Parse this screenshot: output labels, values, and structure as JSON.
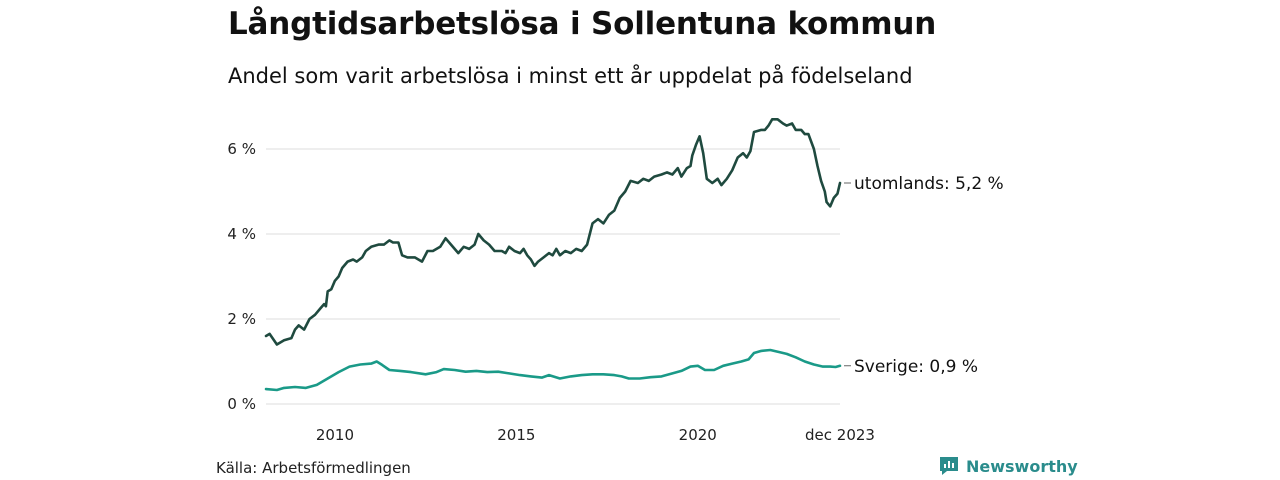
{
  "header": {
    "title": "Långtidsarbetslösa i Sollentuna kommun",
    "subtitle": "Andel som varit arbetslösa i minst ett år uppdelat på födelseland"
  },
  "footer": {
    "source": "Källa: Arbetsförmedlingen",
    "brand": "Newsworthy"
  },
  "colors": {
    "utomlands": "#1f4a3f",
    "sverige": "#1a9a88",
    "grid": "#dddddd",
    "brand": "#2a8c8c"
  },
  "chart_data": {
    "type": "line",
    "title": "Långtidsarbetslösa i Sollentuna kommun",
    "subtitle": "Andel som varit arbetslösa i minst ett år uppdelat på födelseland",
    "xlabel": "",
    "ylabel": "",
    "xlim": [
      2008.1,
      2023.92
    ],
    "ylim": [
      0,
      6.8
    ],
    "x_ticks": [
      {
        "value": 2010,
        "label": "2010"
      },
      {
        "value": 2015,
        "label": "2015"
      },
      {
        "value": 2020,
        "label": "2020"
      },
      {
        "value": 2023.92,
        "label": "dec 2023"
      }
    ],
    "y_ticks": [
      {
        "value": 0,
        "label": "0 %"
      },
      {
        "value": 2,
        "label": "2 %"
      },
      {
        "value": 4,
        "label": "4 %"
      },
      {
        "value": 6,
        "label": "6 %"
      }
    ],
    "grid": true,
    "series": [
      {
        "name": "utomlands",
        "end_label": "utomlands: 5,2 %",
        "color": "#1f4a3f",
        "points": [
          [
            2008.1,
            1.6
          ],
          [
            2008.2,
            1.65
          ],
          [
            2008.4,
            1.4
          ],
          [
            2008.6,
            1.5
          ],
          [
            2008.8,
            1.55
          ],
          [
            2008.9,
            1.75
          ],
          [
            2009.0,
            1.85
          ],
          [
            2009.15,
            1.75
          ],
          [
            2009.3,
            2.0
          ],
          [
            2009.45,
            2.1
          ],
          [
            2009.6,
            2.25
          ],
          [
            2009.7,
            2.35
          ],
          [
            2009.75,
            2.3
          ],
          [
            2009.8,
            2.65
          ],
          [
            2009.9,
            2.7
          ],
          [
            2010.0,
            2.9
          ],
          [
            2010.1,
            3.0
          ],
          [
            2010.2,
            3.2
          ],
          [
            2010.35,
            3.35
          ],
          [
            2010.5,
            3.4
          ],
          [
            2010.6,
            3.35
          ],
          [
            2010.75,
            3.45
          ],
          [
            2010.85,
            3.6
          ],
          [
            2011.0,
            3.7
          ],
          [
            2011.2,
            3.75
          ],
          [
            2011.35,
            3.75
          ],
          [
            2011.5,
            3.85
          ],
          [
            2011.6,
            3.8
          ],
          [
            2011.75,
            3.8
          ],
          [
            2011.85,
            3.5
          ],
          [
            2012.0,
            3.45
          ],
          [
            2012.2,
            3.45
          ],
          [
            2012.4,
            3.35
          ],
          [
            2012.55,
            3.6
          ],
          [
            2012.7,
            3.6
          ],
          [
            2012.9,
            3.7
          ],
          [
            2013.05,
            3.9
          ],
          [
            2013.2,
            3.75
          ],
          [
            2013.4,
            3.55
          ],
          [
            2013.55,
            3.7
          ],
          [
            2013.7,
            3.65
          ],
          [
            2013.85,
            3.75
          ],
          [
            2013.95,
            4.0
          ],
          [
            2014.1,
            3.85
          ],
          [
            2014.25,
            3.75
          ],
          [
            2014.4,
            3.6
          ],
          [
            2014.6,
            3.6
          ],
          [
            2014.7,
            3.55
          ],
          [
            2014.8,
            3.7
          ],
          [
            2014.95,
            3.6
          ],
          [
            2015.1,
            3.55
          ],
          [
            2015.2,
            3.65
          ],
          [
            2015.3,
            3.5
          ],
          [
            2015.4,
            3.4
          ],
          [
            2015.5,
            3.25
          ],
          [
            2015.6,
            3.35
          ],
          [
            2015.75,
            3.45
          ],
          [
            2015.9,
            3.55
          ],
          [
            2016.0,
            3.5
          ],
          [
            2016.1,
            3.65
          ],
          [
            2016.2,
            3.5
          ],
          [
            2016.35,
            3.6
          ],
          [
            2016.5,
            3.55
          ],
          [
            2016.65,
            3.65
          ],
          [
            2016.8,
            3.6
          ],
          [
            2016.95,
            3.75
          ],
          [
            2017.1,
            4.25
          ],
          [
            2017.25,
            4.35
          ],
          [
            2017.4,
            4.25
          ],
          [
            2017.55,
            4.45
          ],
          [
            2017.7,
            4.55
          ],
          [
            2017.85,
            4.85
          ],
          [
            2018.0,
            5.0
          ],
          [
            2018.15,
            5.25
          ],
          [
            2018.35,
            5.2
          ],
          [
            2018.5,
            5.3
          ],
          [
            2018.65,
            5.25
          ],
          [
            2018.8,
            5.35
          ],
          [
            2019.0,
            5.4
          ],
          [
            2019.15,
            5.45
          ],
          [
            2019.3,
            5.4
          ],
          [
            2019.45,
            5.55
          ],
          [
            2019.55,
            5.35
          ],
          [
            2019.7,
            5.55
          ],
          [
            2019.8,
            5.6
          ],
          [
            2019.85,
            5.85
          ],
          [
            2019.95,
            6.1
          ],
          [
            2020.05,
            6.3
          ],
          [
            2020.15,
            5.9
          ],
          [
            2020.25,
            5.3
          ],
          [
            2020.4,
            5.2
          ],
          [
            2020.55,
            5.3
          ],
          [
            2020.65,
            5.15
          ],
          [
            2020.8,
            5.3
          ],
          [
            2020.95,
            5.5
          ],
          [
            2021.1,
            5.8
          ],
          [
            2021.25,
            5.9
          ],
          [
            2021.35,
            5.8
          ],
          [
            2021.45,
            5.95
          ],
          [
            2021.55,
            6.4
          ],
          [
            2021.75,
            6.45
          ],
          [
            2021.85,
            6.45
          ],
          [
            2021.95,
            6.55
          ],
          [
            2022.05,
            6.7
          ],
          [
            2022.2,
            6.7
          ],
          [
            2022.35,
            6.6
          ],
          [
            2022.45,
            6.55
          ],
          [
            2022.6,
            6.6
          ],
          [
            2022.7,
            6.45
          ],
          [
            2022.85,
            6.45
          ],
          [
            2022.95,
            6.35
          ],
          [
            2023.05,
            6.35
          ],
          [
            2023.2,
            6.0
          ],
          [
            2023.3,
            5.6
          ],
          [
            2023.4,
            5.25
          ],
          [
            2023.5,
            5.0
          ],
          [
            2023.55,
            4.75
          ],
          [
            2023.65,
            4.65
          ],
          [
            2023.75,
            4.85
          ],
          [
            2023.85,
            4.95
          ],
          [
            2023.92,
            5.2
          ]
        ]
      },
      {
        "name": "Sverige",
        "end_label": "Sverige: 0,9 %",
        "color": "#1a9a88",
        "points": [
          [
            2008.1,
            0.35
          ],
          [
            2008.4,
            0.33
          ],
          [
            2008.6,
            0.38
          ],
          [
            2008.9,
            0.4
          ],
          [
            2009.2,
            0.38
          ],
          [
            2009.5,
            0.45
          ],
          [
            2009.8,
            0.6
          ],
          [
            2010.1,
            0.75
          ],
          [
            2010.4,
            0.88
          ],
          [
            2010.7,
            0.93
          ],
          [
            2011.0,
            0.95
          ],
          [
            2011.15,
            1.0
          ],
          [
            2011.3,
            0.92
          ],
          [
            2011.5,
            0.8
          ],
          [
            2011.8,
            0.78
          ],
          [
            2012.1,
            0.75
          ],
          [
            2012.5,
            0.7
          ],
          [
            2012.8,
            0.75
          ],
          [
            2013.0,
            0.82
          ],
          [
            2013.3,
            0.8
          ],
          [
            2013.6,
            0.76
          ],
          [
            2013.9,
            0.78
          ],
          [
            2014.2,
            0.75
          ],
          [
            2014.5,
            0.76
          ],
          [
            2014.8,
            0.72
          ],
          [
            2015.1,
            0.68
          ],
          [
            2015.4,
            0.65
          ],
          [
            2015.7,
            0.62
          ],
          [
            2015.9,
            0.68
          ],
          [
            2016.2,
            0.6
          ],
          [
            2016.5,
            0.65
          ],
          [
            2016.8,
            0.68
          ],
          [
            2017.1,
            0.7
          ],
          [
            2017.4,
            0.7
          ],
          [
            2017.7,
            0.68
          ],
          [
            2017.9,
            0.65
          ],
          [
            2018.1,
            0.6
          ],
          [
            2018.4,
            0.6
          ],
          [
            2018.7,
            0.63
          ],
          [
            2019.0,
            0.65
          ],
          [
            2019.3,
            0.72
          ],
          [
            2019.55,
            0.78
          ],
          [
            2019.8,
            0.88
          ],
          [
            2020.0,
            0.9
          ],
          [
            2020.2,
            0.8
          ],
          [
            2020.45,
            0.8
          ],
          [
            2020.7,
            0.9
          ],
          [
            2020.95,
            0.95
          ],
          [
            2021.2,
            1.0
          ],
          [
            2021.4,
            1.05
          ],
          [
            2021.55,
            1.2
          ],
          [
            2021.75,
            1.25
          ],
          [
            2022.0,
            1.27
          ],
          [
            2022.25,
            1.22
          ],
          [
            2022.45,
            1.18
          ],
          [
            2022.7,
            1.1
          ],
          [
            2022.95,
            1.0
          ],
          [
            2023.2,
            0.93
          ],
          [
            2023.45,
            0.88
          ],
          [
            2023.65,
            0.88
          ],
          [
            2023.8,
            0.87
          ],
          [
            2023.92,
            0.9
          ]
        ]
      }
    ]
  }
}
